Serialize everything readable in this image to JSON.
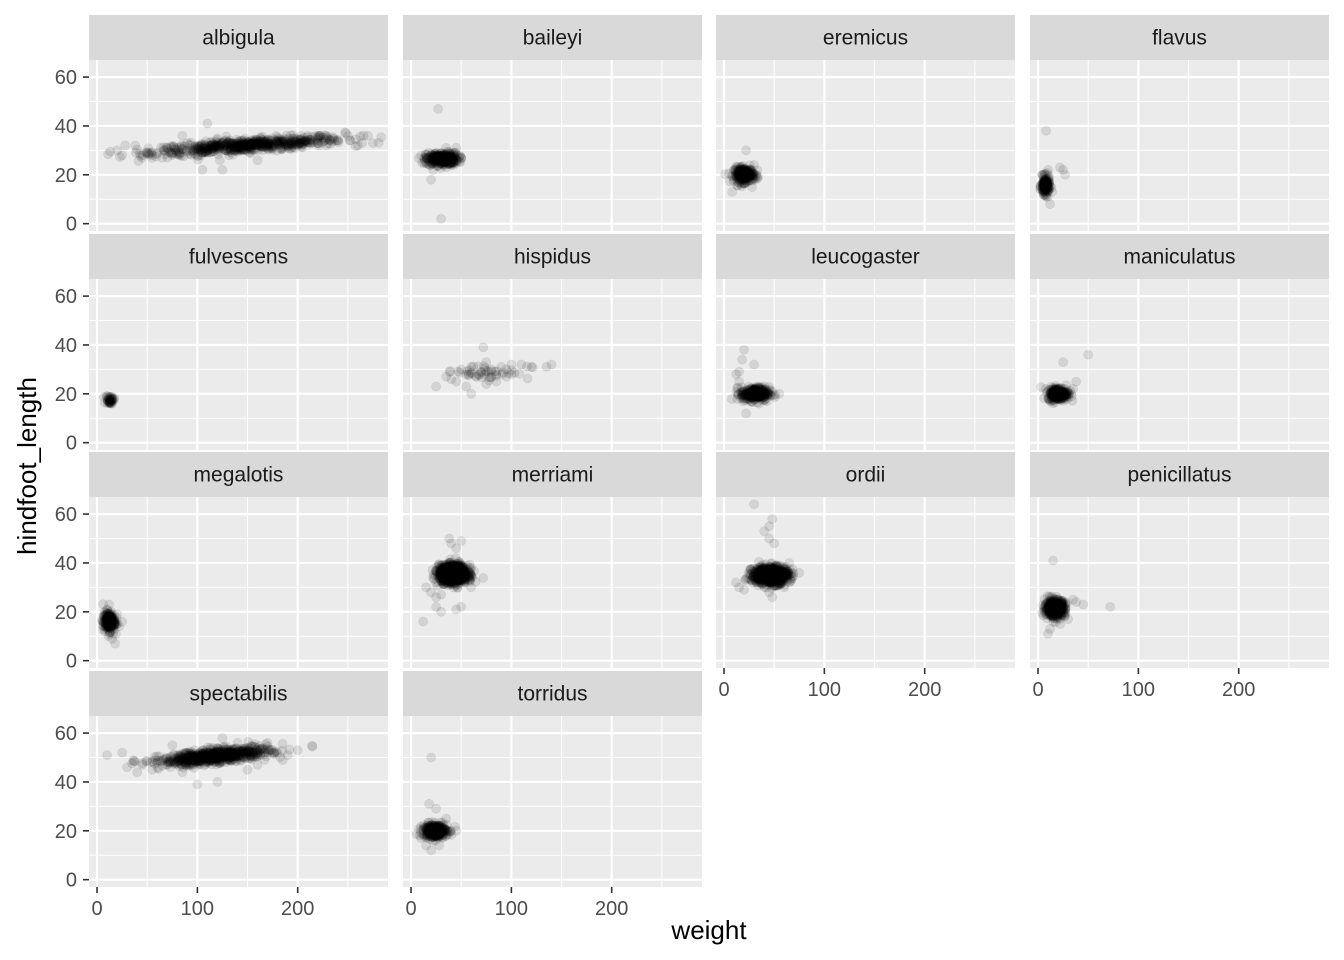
{
  "chart_data": {
    "type": "scatter",
    "xlabel": "weight",
    "ylabel": "hindfoot_length",
    "xlim": [
      -8,
      290
    ],
    "ylim": [
      -3,
      67
    ],
    "x_ticks": [
      0,
      100,
      200
    ],
    "y_ticks": [
      0,
      20,
      40,
      60
    ],
    "grid": true,
    "layout": "facet_wrap 4 columns",
    "point_color": "#000000",
    "point_alpha": 0.1,
    "panel_background": "#ebebeb",
    "strip_background": "#d9d9d9",
    "gridline_color": "#ffffff",
    "panels": [
      {
        "label": "albigula",
        "points": [
          [
            20,
            30
          ],
          [
            28,
            32
          ],
          [
            38,
            32
          ],
          [
            55,
            28
          ],
          [
            60,
            29
          ],
          [
            70,
            31
          ],
          [
            80,
            31
          ],
          [
            90,
            33
          ],
          [
            95,
            30
          ],
          [
            100,
            32
          ],
          [
            110,
            41
          ],
          [
            115,
            33
          ],
          [
            120,
            35
          ],
          [
            130,
            33
          ],
          [
            140,
            30
          ],
          [
            150,
            33
          ],
          [
            160,
            32
          ],
          [
            170,
            34
          ],
          [
            180,
            33
          ],
          [
            190,
            33
          ],
          [
            200,
            32
          ],
          [
            210,
            36
          ],
          [
            220,
            33
          ],
          [
            240,
            34
          ],
          [
            260,
            32
          ],
          [
            270,
            36
          ],
          [
            275,
            33
          ],
          [
            85,
            36
          ],
          [
            105,
            22
          ],
          [
            125,
            22
          ],
          [
            160,
            26
          ],
          [
            65,
            27
          ],
          [
            45,
            27
          ],
          [
            25,
            28
          ]
        ],
        "clusters": [
          {
            "cx": 150,
            "cy": 32,
            "sx": 48,
            "sy": 1.3,
            "n": 650,
            "angle": 0.028
          }
        ]
      },
      {
        "label": "baileyi",
        "points": [
          [
            27,
            47
          ],
          [
            20,
            18
          ],
          [
            30,
            2
          ],
          [
            22,
            22
          ],
          [
            35,
            31
          ],
          [
            45,
            31
          ],
          [
            40,
            25
          ],
          [
            50,
            27
          ],
          [
            18,
            26
          ],
          [
            15,
            25
          ]
        ],
        "clusters": [
          {
            "cx": 31,
            "cy": 26.5,
            "sx": 8,
            "sy": 1.3,
            "n": 320
          }
        ]
      },
      {
        "label": "eremicus",
        "points": [
          [
            22,
            30
          ],
          [
            8,
            13
          ],
          [
            15,
            18
          ],
          [
            30,
            24
          ],
          [
            28,
            15
          ],
          [
            10,
            22
          ],
          [
            32,
            20
          ]
        ],
        "clusters": [
          {
            "cx": 20,
            "cy": 20,
            "sx": 5,
            "sy": 1.5,
            "n": 260
          }
        ]
      },
      {
        "label": "flavus",
        "points": [
          [
            8,
            38
          ],
          [
            25,
            22
          ],
          [
            27,
            20
          ],
          [
            6,
            12
          ],
          [
            12,
            8
          ],
          [
            14,
            13
          ],
          [
            22,
            23
          ],
          [
            4,
            20
          ],
          [
            10,
            22
          ]
        ],
        "clusters": [
          {
            "cx": 7.5,
            "cy": 15.5,
            "sx": 2,
            "sy": 1.8,
            "n": 160
          }
        ]
      },
      {
        "label": "fulvescens",
        "points": [],
        "clusters": [
          {
            "cx": 13,
            "cy": 17.5,
            "sx": 2,
            "sy": 0.9,
            "n": 45
          }
        ]
      },
      {
        "label": "hispidus",
        "points": [
          [
            25,
            23
          ],
          [
            40,
            26
          ],
          [
            45,
            25
          ],
          [
            50,
            30
          ],
          [
            55,
            28
          ],
          [
            60,
            31
          ],
          [
            65,
            27
          ],
          [
            70,
            29
          ],
          [
            72,
            39
          ],
          [
            75,
            33
          ],
          [
            80,
            30
          ],
          [
            85,
            28
          ],
          [
            90,
            31
          ],
          [
            95,
            27
          ],
          [
            100,
            32
          ],
          [
            110,
            32
          ],
          [
            120,
            31
          ],
          [
            135,
            31
          ],
          [
            140,
            32
          ],
          [
            55,
            23
          ],
          [
            85,
            25
          ],
          [
            60,
            20
          ],
          [
            35,
            27
          ],
          [
            100,
            28
          ],
          [
            75,
            24
          ],
          [
            95,
            30
          ]
        ],
        "clusters": [
          {
            "cx": 75,
            "cy": 29,
            "sx": 22,
            "sy": 1.5,
            "n": 40
          }
        ]
      },
      {
        "label": "leucogaster",
        "points": [
          [
            20,
            38
          ],
          [
            18,
            34
          ],
          [
            12,
            28
          ],
          [
            15,
            29
          ],
          [
            30,
            32
          ],
          [
            22,
            12
          ],
          [
            25,
            18
          ],
          [
            48,
            21
          ],
          [
            55,
            20
          ],
          [
            35,
            16
          ],
          [
            15,
            25
          ]
        ],
        "clusters": [
          {
            "cx": 31,
            "cy": 20,
            "sx": 7,
            "sy": 1.4,
            "n": 300
          }
        ]
      },
      {
        "label": "maniculatus",
        "points": [
          [
            50,
            36
          ],
          [
            25,
            33
          ],
          [
            38,
            25
          ],
          [
            10,
            18
          ],
          [
            35,
            22
          ],
          [
            15,
            22
          ]
        ],
        "clusters": [
          {
            "cx": 20,
            "cy": 20,
            "sx": 5,
            "sy": 1.3,
            "n": 260
          }
        ]
      },
      {
        "label": "megalotis",
        "points": [
          [
            10,
            21
          ],
          [
            12,
            23
          ],
          [
            15,
            9
          ],
          [
            18,
            7
          ],
          [
            25,
            16
          ],
          [
            8,
            12
          ],
          [
            16,
            11
          ],
          [
            20,
            19
          ]
        ],
        "clusters": [
          {
            "cx": 12,
            "cy": 16,
            "sx": 3,
            "sy": 2,
            "n": 200
          }
        ]
      },
      {
        "label": "merriami",
        "points": [
          [
            12,
            16
          ],
          [
            25,
            22
          ],
          [
            30,
            20
          ],
          [
            45,
            21
          ],
          [
            38,
            50
          ],
          [
            40,
            48
          ],
          [
            50,
            49
          ],
          [
            45,
            46
          ],
          [
            20,
            28
          ],
          [
            25,
            26
          ],
          [
            60,
            38
          ],
          [
            50,
            22
          ],
          [
            30,
            27
          ],
          [
            15,
            30
          ]
        ],
        "clusters": [
          {
            "cx": 42,
            "cy": 35.5,
            "sx": 7,
            "sy": 1.8,
            "n": 1100
          }
        ]
      },
      {
        "label": "ordii",
        "points": [
          [
            30,
            64
          ],
          [
            48,
            58
          ],
          [
            45,
            55
          ],
          [
            40,
            53
          ],
          [
            45,
            50
          ],
          [
            50,
            48
          ],
          [
            12,
            32
          ],
          [
            15,
            30
          ],
          [
            20,
            29
          ],
          [
            45,
            28
          ],
          [
            48,
            26
          ],
          [
            75,
            36
          ],
          [
            60,
            30
          ],
          [
            65,
            40
          ]
        ],
        "clusters": [
          {
            "cx": 46,
            "cy": 35,
            "sx": 9,
            "sy": 1.8,
            "n": 700
          }
        ]
      },
      {
        "label": "penicillatus",
        "points": [
          [
            15,
            41
          ],
          [
            72,
            22
          ],
          [
            45,
            23
          ],
          [
            10,
            11
          ],
          [
            12,
            13
          ],
          [
            22,
            15
          ],
          [
            35,
            25
          ],
          [
            30,
            17
          ],
          [
            38,
            24
          ]
        ],
        "clusters": [
          {
            "cx": 17,
            "cy": 21.5,
            "sx": 5,
            "sy": 1.7,
            "n": 450
          }
        ]
      },
      {
        "label": "spectabilis",
        "points": [
          [
            10,
            51
          ],
          [
            25,
            52
          ],
          [
            30,
            46
          ],
          [
            40,
            44
          ],
          [
            45,
            47
          ],
          [
            55,
            45
          ],
          [
            60,
            48
          ],
          [
            75,
            55
          ],
          [
            85,
            44
          ],
          [
            100,
            39
          ],
          [
            120,
            40
          ],
          [
            125,
            58
          ],
          [
            150,
            45
          ],
          [
            170,
            56
          ],
          [
            185,
            49
          ],
          [
            190,
            51
          ],
          [
            200,
            53
          ],
          [
            140,
            56
          ],
          [
            160,
            47
          ],
          [
            70,
            47
          ]
        ],
        "clusters": [
          {
            "cx": 118,
            "cy": 50.5,
            "sx": 27,
            "sy": 1.4,
            "n": 700,
            "angle": 0.04
          }
        ]
      },
      {
        "label": "torridus",
        "points": [
          [
            20,
            50
          ],
          [
            18,
            31
          ],
          [
            25,
            29
          ],
          [
            15,
            14
          ],
          [
            20,
            12
          ],
          [
            10,
            17
          ],
          [
            45,
            20
          ],
          [
            35,
            25
          ],
          [
            28,
            14
          ]
        ],
        "clusters": [
          {
            "cx": 24,
            "cy": 20,
            "sx": 6,
            "sy": 1.4,
            "n": 320
          }
        ]
      }
    ]
  }
}
